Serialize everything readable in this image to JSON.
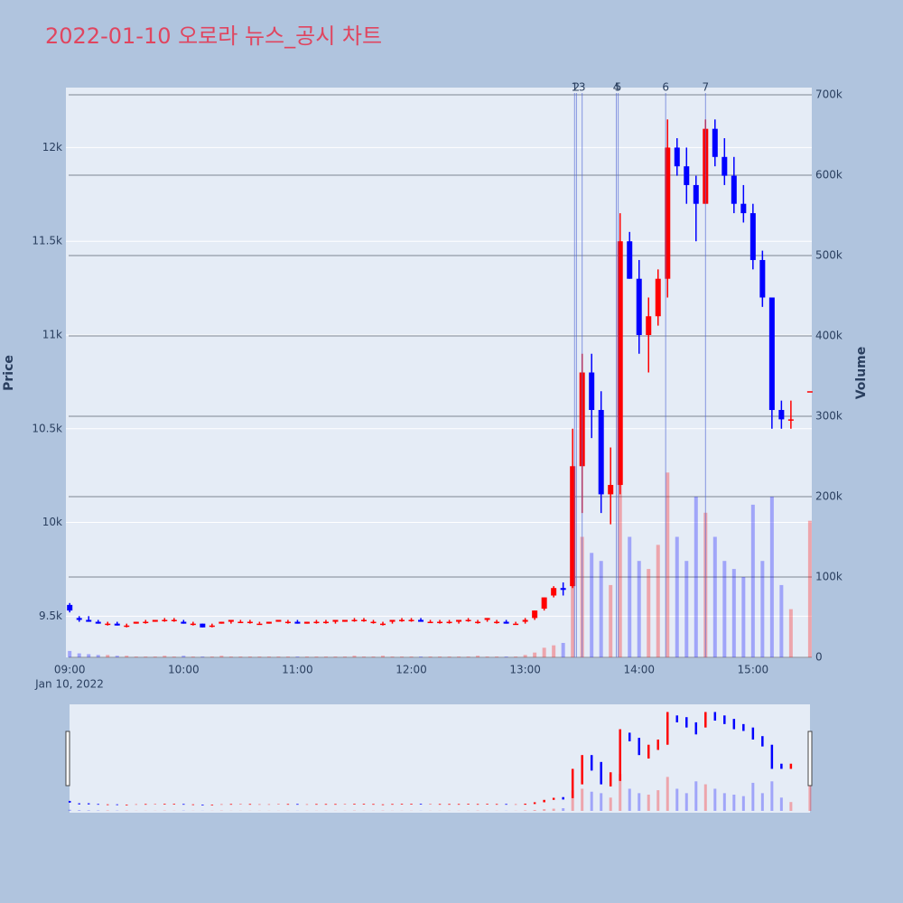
{
  "chart_data": {
    "type": "candlestick",
    "title": "2022-01-10 오로라 뉴스_공시 차트",
    "y_label": "Price",
    "y2_label": "Volume",
    "x_date_label": "Jan 10, 2022",
    "increasing_color": "#ff0000",
    "decreasing_color": "#0000ff",
    "x": [
      "09:00",
      "09:05",
      "09:10",
      "09:15",
      "09:20",
      "09:25",
      "09:30",
      "09:35",
      "09:40",
      "09:45",
      "09:50",
      "09:55",
      "10:00",
      "10:05",
      "10:10",
      "10:15",
      "10:20",
      "10:25",
      "10:30",
      "10:35",
      "10:40",
      "10:45",
      "10:50",
      "10:55",
      "11:00",
      "11:05",
      "11:10",
      "11:15",
      "11:20",
      "11:25",
      "11:30",
      "11:35",
      "11:40",
      "11:45",
      "11:50",
      "11:55",
      "12:00",
      "12:05",
      "12:10",
      "12:15",
      "12:20",
      "12:25",
      "12:30",
      "12:35",
      "12:40",
      "12:45",
      "12:50",
      "12:55",
      "13:00",
      "13:05",
      "13:10",
      "13:15",
      "13:20",
      "13:25",
      "13:30",
      "13:35",
      "13:40",
      "13:45",
      "13:50",
      "13:55",
      "14:00",
      "14:05",
      "14:10",
      "14:15",
      "14:20",
      "14:25",
      "14:30",
      "14:35",
      "14:40",
      "14:45",
      "14:50",
      "14:55",
      "15:00",
      "15:05",
      "15:10",
      "15:15",
      "15:20",
      "15:30"
    ],
    "open": [
      9560,
      9490,
      9480,
      9470,
      9460,
      9460,
      9450,
      9460,
      9470,
      9470,
      9480,
      9480,
      9470,
      9460,
      9460,
      9450,
      9460,
      9470,
      9470,
      9470,
      9460,
      9460,
      9470,
      9470,
      9470,
      9460,
      9470,
      9470,
      9470,
      9470,
      9480,
      9480,
      9470,
      9460,
      9470,
      9480,
      9480,
      9480,
      9470,
      9470,
      9470,
      9470,
      9480,
      9470,
      9480,
      9470,
      9470,
      9460,
      9470,
      9490,
      9540,
      9610,
      9650,
      9660,
      10300,
      10800,
      10600,
      10150,
      10200,
      11500,
      11300,
      11000,
      11100,
      11300,
      12000,
      11900,
      11800,
      11700,
      12100,
      11950,
      11850,
      11700,
      11650,
      11400,
      11200,
      10600,
      10550,
      10700
    ],
    "high": [
      9570,
      9500,
      9500,
      9480,
      9470,
      9470,
      9460,
      9470,
      9480,
      9480,
      9490,
      9490,
      9480,
      9470,
      9460,
      9460,
      9470,
      9480,
      9480,
      9480,
      9470,
      9470,
      9480,
      9480,
      9480,
      9470,
      9480,
      9480,
      9480,
      9480,
      9490,
      9490,
      9480,
      9470,
      9480,
      9490,
      9490,
      9490,
      9480,
      9480,
      9480,
      9480,
      9490,
      9480,
      9490,
      9480,
      9480,
      9470,
      9490,
      9530,
      9600,
      9660,
      9680,
      10500,
      10900,
      10900,
      10700,
      10400,
      11650,
      11550,
      11400,
      11200,
      11350,
      12150,
      12050,
      12000,
      11850,
      12150,
      12150,
      12050,
      11950,
      11800,
      11700,
      11450,
      11200,
      10650,
      10650,
      10700
    ],
    "low": [
      9520,
      9470,
      9470,
      9460,
      9450,
      9450,
      9440,
      9460,
      9460,
      9470,
      9470,
      9470,
      9460,
      9450,
      9440,
      9440,
      9460,
      9460,
      9470,
      9460,
      9460,
      9460,
      9470,
      9460,
      9460,
      9460,
      9460,
      9460,
      9460,
      9470,
      9470,
      9470,
      9460,
      9450,
      9460,
      9470,
      9470,
      9470,
      9470,
      9460,
      9460,
      9460,
      9470,
      9460,
      9470,
      9460,
      9460,
      9460,
      9460,
      9480,
      9530,
      9600,
      9610,
      9650,
      10050,
      10450,
      10050,
      9990,
      10150,
      11300,
      10900,
      10800,
      11050,
      11200,
      11850,
      11700,
      11500,
      11700,
      11900,
      11800,
      11650,
      11600,
      11350,
      11150,
      10500,
      10500,
      10500,
      10700
    ],
    "close": [
      9530,
      9480,
      9470,
      9460,
      9460,
      9450,
      9450,
      9470,
      9470,
      9480,
      9480,
      9480,
      9460,
      9460,
      9440,
      9450,
      9470,
      9480,
      9470,
      9470,
      9460,
      9470,
      9480,
      9470,
      9460,
      9470,
      9470,
      9470,
      9480,
      9480,
      9480,
      9480,
      9470,
      9460,
      9480,
      9480,
      9480,
      9470,
      9470,
      9470,
      9470,
      9480,
      9480,
      9470,
      9490,
      9470,
      9460,
      9460,
      9480,
      9530,
      9600,
      9650,
      9640,
      10300,
      10800,
      10600,
      10150,
      10200,
      11500,
      11300,
      11000,
      11100,
      11300,
      12000,
      11900,
      11800,
      11700,
      12100,
      11950,
      11850,
      11700,
      11650,
      11400,
      11200,
      10600,
      10550,
      10550,
      10700
    ],
    "volume": [
      8000,
      5000,
      4000,
      3000,
      3000,
      2000,
      2000,
      1000,
      1000,
      1000,
      2000,
      1000,
      2000,
      1000,
      1000,
      1000,
      2000,
      1000,
      1000,
      1000,
      1000,
      1000,
      1000,
      1000,
      1000,
      1000,
      1000,
      1000,
      1000,
      1000,
      2000,
      1000,
      1000,
      2000,
      1000,
      1000,
      1000,
      1000,
      1000,
      1000,
      1000,
      1000,
      1000,
      2000,
      1000,
      1000,
      1000,
      1000,
      3000,
      6000,
      12000,
      15000,
      18000,
      140000,
      150000,
      130000,
      120000,
      90000,
      250000,
      150000,
      120000,
      110000,
      140000,
      230000,
      150000,
      120000,
      200000,
      180000,
      150000,
      120000,
      110000,
      100000,
      190000,
      120000,
      200000,
      90000,
      60000,
      170000
    ],
    "xlim": [
      "08:58",
      "15:31"
    ],
    "xticks": [
      "09:00",
      "10:00",
      "11:00",
      "12:00",
      "13:00",
      "14:00",
      "15:00"
    ],
    "ylim": [
      9280,
      12320
    ],
    "yticks": [
      {
        "value": 9500,
        "label": "9.5k"
      },
      {
        "value": 10000,
        "label": "10k"
      },
      {
        "value": 10500,
        "label": "10.5k"
      },
      {
        "value": 11000,
        "label": "11k"
      },
      {
        "value": 11500,
        "label": "11.5k"
      },
      {
        "value": 12000,
        "label": "12k"
      }
    ],
    "y2lim": [
      0,
      709000
    ],
    "y2ticks": [
      0,
      {
        "value": 100000,
        "label": "100k"
      },
      {
        "value": 200000,
        "label": "200k"
      },
      {
        "value": 300000,
        "label": "300k"
      },
      {
        "value": 400000,
        "label": "400k"
      },
      {
        "value": 500000,
        "label": "500k"
      },
      {
        "value": 600000,
        "label": "600k"
      },
      {
        "value": 700000,
        "label": "700k"
      }
    ],
    "vlines": [
      {
        "x": "13:26",
        "label": "1"
      },
      {
        "x": "13:27",
        "label": "2"
      },
      {
        "x": "13:30",
        "label": "3"
      },
      {
        "x": "13:48",
        "label": "4"
      },
      {
        "x": "13:49",
        "label": "5"
      },
      {
        "x": "14:14",
        "label": "6"
      },
      {
        "x": "14:35",
        "label": "7"
      }
    ],
    "grid": true,
    "rangeslider": true
  }
}
